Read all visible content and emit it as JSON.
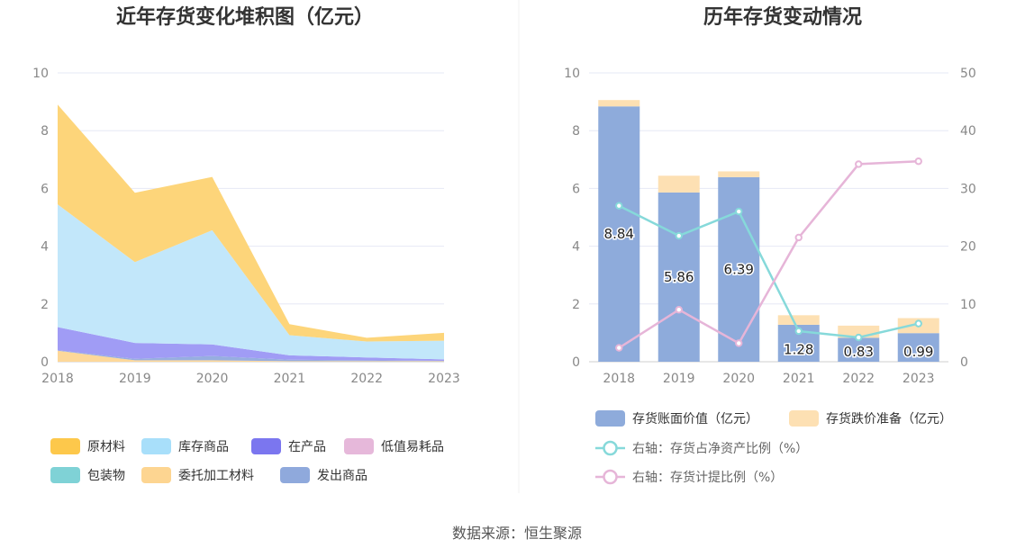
{
  "footer": {
    "source": "数据来源：恒生聚源"
  },
  "chart_data": [
    {
      "type": "area",
      "stacked": true,
      "title": "近年存货变化堆积图（亿元）",
      "x": [
        "2018",
        "2019",
        "2020",
        "2021",
        "2022",
        "2023"
      ],
      "ylim": [
        0,
        10
      ],
      "yticks": [
        0,
        2,
        4,
        6,
        8,
        10
      ],
      "grid": true,
      "legend_position": "bottom",
      "series": [
        {
          "name": "委托加工材料",
          "color": "#fdd89a",
          "values": [
            0.38,
            0.05,
            0.05,
            0.02,
            0.02,
            0.02
          ]
        },
        {
          "name": "发出商品",
          "color": "#97aee0",
          "values": [
            0.02,
            0.05,
            0.15,
            0.05,
            0.03,
            0.01
          ]
        },
        {
          "name": "包装物",
          "color": "#84d3d8",
          "values": [
            0.0,
            0.0,
            0.0,
            0.0,
            0.0,
            0.0
          ]
        },
        {
          "name": "低值易耗品",
          "color": "#e8b7da",
          "values": [
            0.0,
            0.0,
            0.0,
            0.0,
            0.0,
            0.0
          ]
        },
        {
          "name": "在产品",
          "color": "#a09cf5",
          "values": [
            0.8,
            0.55,
            0.4,
            0.15,
            0.1,
            0.05
          ]
        },
        {
          "name": "库存商品",
          "color": "#c2e7fa",
          "values": [
            4.25,
            2.8,
            3.95,
            0.7,
            0.55,
            0.65
          ]
        },
        {
          "name": "原材料",
          "color": "#fdd57a",
          "values": [
            3.45,
            2.4,
            1.85,
            0.38,
            0.13,
            0.27
          ]
        }
      ],
      "legend_order": [
        "原材料",
        "库存商品",
        "在产品",
        "低值易耗品",
        "包装物",
        "委托加工材料",
        "发出商品"
      ],
      "legend_colors": {
        "原材料": "#fdc84b",
        "库存商品": "#a8dffa",
        "在产品": "#7b76ef",
        "低值易耗品": "#e6b8da",
        "包装物": "#7fd2d6",
        "委托加工材料": "#fdd591",
        "发出商品": "#8fa9dc"
      }
    },
    {
      "type": "bar",
      "stacked": true,
      "title": "历年存货变动情况",
      "categories": [
        "2018",
        "2019",
        "2020",
        "2021",
        "2022",
        "2023"
      ],
      "ylim": [
        0,
        10
      ],
      "yticks": [
        0,
        2,
        4,
        6,
        8,
        10
      ],
      "y2lim": [
        0,
        50
      ],
      "y2ticks": [
        0,
        10,
        20,
        30,
        40,
        50
      ],
      "grid": true,
      "legend_position": "bottom",
      "series": [
        {
          "name": "存货账面价值（亿元）",
          "color": "#8eabdb",
          "values": [
            8.84,
            5.86,
            6.39,
            1.28,
            0.83,
            0.99
          ],
          "labels": [
            "8.84",
            "5.86",
            "6.39",
            "1.28",
            "0.83",
            "0.99"
          ]
        },
        {
          "name": "存货跌价准备（亿元）",
          "color": "#fde0b3",
          "values": [
            0.22,
            0.58,
            0.2,
            0.33,
            0.42,
            0.52
          ]
        }
      ],
      "line_series": [
        {
          "name": "右轴：存货占净资产比例（%）",
          "color": "#86d9da",
          "axis": "right",
          "values": [
            27.0,
            21.8,
            26.0,
            5.3,
            4.2,
            6.6
          ]
        },
        {
          "name": "右轴：存货计提比例（%）",
          "color": "#e6b5d8",
          "axis": "right",
          "values": [
            2.4,
            9.0,
            3.2,
            21.5,
            34.2,
            34.7
          ]
        }
      ]
    }
  ]
}
